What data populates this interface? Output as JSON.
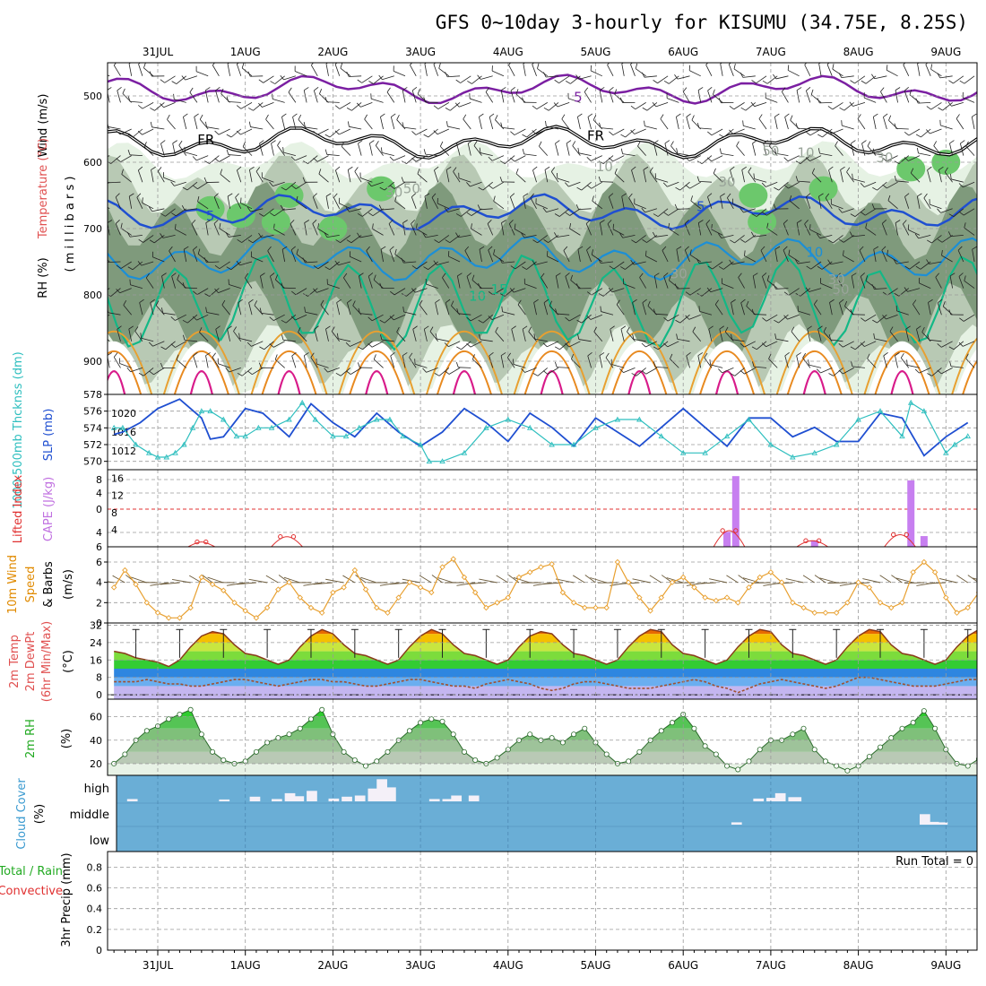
{
  "title": "GFS 0~10day 3-hourly for KISUMU (34.75E, 8.25S)",
  "dates": [
    "31JUL",
    "1AUG",
    "2AUG",
    "3AUG",
    "4AUG",
    "5AUG",
    "6AUG",
    "7AUG",
    "8AUG",
    "9AUG"
  ],
  "colors": {
    "grid": "#9a9a9a",
    "rh_light": "#e6f2e4",
    "rh_mid": "#b8c9b4",
    "rh_dark": "#7f9a7c",
    "rh_green": "#6cc86c",
    "cloud": "#6aaed6",
    "frz": "#000000"
  },
  "chart_data": [
    {
      "id": "upper-air",
      "type": "contour",
      "labels": {
        "wind": "Wind (m/s)",
        "temperature": "Temperature (°C)",
        "rh": "RH (%)",
        "pressure": "( m i l l i b a r s )"
      },
      "yticks": [
        500,
        600,
        700,
        800,
        900
      ],
      "ylim": [
        450,
        950
      ],
      "contour_labels": [
        {
          "text": "5",
          "value": 5,
          "t": 4.8,
          "p": 502,
          "color": "#7b1fa2"
        },
        {
          "text": "FR",
          "value": 0,
          "t": 0.55,
          "p": 566,
          "color": "#000000"
        },
        {
          "text": "FR",
          "value": 0,
          "t": 5.0,
          "p": 560,
          "color": "#000000"
        },
        {
          "text": "5",
          "value": 5,
          "t": 0.6,
          "p": 681,
          "color": "#1f4fd1"
        },
        {
          "text": "5",
          "value": 5,
          "t": 6.2,
          "p": 667,
          "color": "#1f4fd1"
        },
        {
          "text": "10",
          "value": 10,
          "t": 7.5,
          "p": 736,
          "color": "#1c8fd6"
        },
        {
          "text": "10",
          "value": 10,
          "t": 3.65,
          "p": 802,
          "color": "#13b886"
        },
        {
          "text": "15",
          "value": 15,
          "t": 3.9,
          "p": 792,
          "color": "#13b886"
        },
        {
          "text": "10",
          "value": 10,
          "t": 5.1,
          "p": 607,
          "color": "#9aa59a"
        },
        {
          "text": "30",
          "value": 30,
          "t": 2.7,
          "p": 645,
          "color": "#9aa59a"
        },
        {
          "text": "50",
          "value": 50,
          "t": 2.9,
          "p": 640,
          "color": "#9aa59a"
        },
        {
          "text": "30",
          "value": 30,
          "t": 6.5,
          "p": 630,
          "color": "#9aa59a"
        },
        {
          "text": "50",
          "value": 50,
          "t": 7.0,
          "p": 583,
          "color": "#9aa59a"
        },
        {
          "text": "10",
          "value": 10,
          "t": 7.4,
          "p": 586,
          "color": "#9aa59a"
        },
        {
          "text": "30",
          "value": 30,
          "t": 8.3,
          "p": 593,
          "color": "#9aa59a"
        },
        {
          "text": "30",
          "value": 30,
          "t": 5.95,
          "p": 768,
          "color": "#9aa59a"
        },
        {
          "text": "30",
          "value": 30,
          "t": 7.75,
          "p": 777,
          "color": "#9aa59a"
        },
        {
          "text": "50",
          "value": 50,
          "t": 7.8,
          "p": 792,
          "color": "#9aa59a"
        }
      ]
    },
    {
      "id": "slp-thickness",
      "type": "line",
      "labels": {
        "thickness": "1000-500mb Thcknss (dm)",
        "slp": "SLP (mb)"
      },
      "left_ticks": [
        570,
        572,
        574,
        576,
        578
      ],
      "left_lim": [
        569,
        578
      ],
      "right_ticks": [
        1012,
        1016,
        1020
      ],
      "right_lim": [
        1008,
        1024
      ],
      "series": [
        {
          "key": "slp",
          "color": "#1f4fd1",
          "t": [
            -0.5,
            -0.4,
            -0.2,
            0,
            0.25,
            0.5,
            0.6,
            0.75,
            1.0,
            1.2,
            1.5,
            1.75,
            2.0,
            2.25,
            2.5,
            2.75,
            3.0,
            3.25,
            3.5,
            3.75,
            4.0,
            4.25,
            4.5,
            4.75,
            5.0,
            5.25,
            5.5,
            5.75,
            6.0,
            6.25,
            6.5,
            6.75,
            7.0,
            7.25,
            7.5,
            7.75,
            8.0,
            8.25,
            8.5,
            8.75,
            9.0,
            9.25
          ],
          "values": [
            1015.5,
            1016,
            1018,
            1021,
            1023,
            1019,
            1014.5,
            1015,
            1021,
            1020,
            1015,
            1022,
            1018,
            1015,
            1020,
            1016,
            1013,
            1016,
            1021,
            1018,
            1014,
            1020,
            1017,
            1013,
            1019,
            1016,
            1013,
            1017,
            1021,
            1017,
            1013,
            1019,
            1019,
            1015,
            1017,
            1014,
            1014,
            1020,
            1019,
            1011,
            1015,
            1018
          ]
        },
        {
          "key": "thickness",
          "color": "#2fbfbf",
          "t": [
            -0.5,
            -0.4,
            -0.25,
            -0.1,
            0.0,
            0.1,
            0.2,
            0.3,
            0.4,
            0.5,
            0.6,
            0.75,
            0.9,
            1.0,
            1.15,
            1.3,
            1.5,
            1.65,
            1.8,
            2.0,
            2.15,
            2.3,
            2.5,
            2.65,
            2.8,
            3.0,
            3.1,
            3.25,
            3.5,
            3.75,
            4.0,
            4.25,
            4.5,
            4.75,
            5.0,
            5.25,
            5.5,
            5.75,
            6.0,
            6.25,
            6.5,
            6.75,
            7.0,
            7.25,
            7.5,
            7.75,
            8.0,
            8.25,
            8.5,
            8.6,
            8.75,
            9.0,
            9.1,
            9.25
          ],
          "values": [
            574,
            574,
            572,
            571,
            570.5,
            570.5,
            571,
            572,
            574,
            576,
            576,
            575,
            573,
            573,
            574,
            574,
            575,
            577,
            575,
            573,
            573,
            574,
            575,
            575,
            573,
            572,
            570,
            570,
            571,
            574,
            575,
            574,
            572,
            572,
            574,
            575,
            575,
            573,
            571,
            571,
            573,
            575,
            572,
            570.5,
            571,
            572,
            575,
            576,
            573,
            577,
            576,
            571,
            572,
            573
          ]
        }
      ]
    },
    {
      "id": "instability",
      "type": "bar",
      "labels": {
        "li": "Lifted Index",
        "cape": "CAPE (J/kg)"
      },
      "left_ticks": [
        -8,
        -4,
        0,
        4,
        6
      ],
      "left_tick_labels": [
        "8",
        "4",
        "0",
        "4",
        "6"
      ],
      "right_ticks": [
        4,
        8,
        12,
        16
      ],
      "right_lim": [
        0,
        18
      ],
      "cape_bars": [
        {
          "t": 6.5,
          "value": 3.5
        },
        {
          "t": 6.6,
          "value": 16.5
        },
        {
          "t": 7.5,
          "value": 1.5
        },
        {
          "t": 8.6,
          "value": 15.5
        },
        {
          "t": 8.75,
          "value": 2.5
        }
      ],
      "li_points": [
        {
          "t": 0.45,
          "value": 1.2
        },
        {
          "t": 0.55,
          "value": 1.2
        },
        {
          "t": 1.4,
          "value": 2.5
        },
        {
          "t": 1.55,
          "value": 2.5
        },
        {
          "t": 6.45,
          "value": 4
        },
        {
          "t": 6.6,
          "value": 4
        },
        {
          "t": 7.4,
          "value": 1.5
        },
        {
          "t": 7.55,
          "value": 1.5
        },
        {
          "t": 8.4,
          "value": 3
        },
        {
          "t": 8.55,
          "value": 3
        }
      ]
    },
    {
      "id": "wind10m",
      "type": "line",
      "labels": {
        "wind": "10m Wind",
        "speed": "Speed",
        "barbs": "& Barbs",
        "unit": "(m/s)"
      },
      "yticks": [
        0,
        2,
        4,
        6
      ],
      "ylim": [
        0,
        7.5
      ],
      "x_step": 0.125,
      "x_start": -0.5,
      "values": [
        3.5,
        5.2,
        3.8,
        2.0,
        1.0,
        0.5,
        0.5,
        1.5,
        4.5,
        3.8,
        3.2,
        2.0,
        1.2,
        0.5,
        1.5,
        3.3,
        4.0,
        2.5,
        1.5,
        1.0,
        3.0,
        3.5,
        5.2,
        3.3,
        1.5,
        1.0,
        2.5,
        4.0,
        3.5,
        3.0,
        5.5,
        6.3,
        4.5,
        3.0,
        1.5,
        2.0,
        2.5,
        4.5,
        5.0,
        5.5,
        5.8,
        3.0,
        2.0,
        1.5,
        1.5,
        1.5,
        6.0,
        4.0,
        2.5,
        1.2,
        2.5,
        4.0,
        4.5,
        3.5,
        2.5,
        2.2,
        2.5,
        2.0,
        3.5,
        4.5,
        5.0,
        4.0,
        2.0,
        1.5,
        1.0,
        1.0,
        1.0,
        2.0,
        4.0,
        3.5,
        2.0,
        1.5,
        2.0,
        5.0,
        6.0,
        5.0,
        2.5,
        1.0,
        1.5,
        3.0,
        2.5,
        4.0,
        4.5,
        2.0,
        1.5,
        2.0,
        3.0,
        3.5,
        2.5,
        3.5
      ]
    },
    {
      "id": "temp2m",
      "type": "area",
      "labels": {
        "t": "2m Temp",
        "d": "2m DewPt",
        "m": "(6hr Min/Max)",
        "unit": "(°C)"
      },
      "yticks": [
        0,
        8,
        16,
        24,
        32
      ],
      "ylim": [
        -2,
        33
      ],
      "x_step": 0.125,
      "x_start": -0.5,
      "temp": [
        20,
        19,
        17,
        16,
        15,
        13,
        16,
        22,
        27,
        29,
        28,
        23,
        19,
        18,
        16,
        14,
        16,
        22,
        27,
        30,
        28,
        23,
        19,
        18,
        16,
        14,
        16,
        22,
        27,
        30,
        28,
        23,
        19,
        18,
        16,
        14,
        16,
        22,
        27,
        29,
        28,
        23,
        19,
        18,
        16,
        14,
        16,
        22,
        27,
        30,
        29,
        23,
        19,
        18,
        16,
        14,
        16,
        22,
        27,
        30,
        29,
        23,
        19,
        18,
        16,
        14,
        16,
        22,
        27,
        30,
        29,
        23,
        19,
        18,
        16,
        14,
        16,
        22,
        27,
        30,
        29,
        23,
        19,
        18,
        16,
        14,
        16,
        22,
        27,
        30,
        29,
        23,
        19,
        18,
        17,
        16,
        15,
        22
      ],
      "dewpoint": [
        6,
        6,
        6,
        7,
        6,
        5,
        5,
        4,
        4,
        5,
        6,
        7,
        7,
        6,
        5,
        4,
        5,
        6,
        7,
        7,
        6,
        6,
        5,
        4,
        4,
        5,
        6,
        7,
        7,
        6,
        5,
        4,
        4,
        3,
        5,
        6,
        7,
        6,
        5,
        3,
        2,
        3,
        5,
        6,
        6,
        5,
        4,
        3,
        3,
        3,
        4,
        5,
        6,
        7,
        6,
        4,
        3,
        1,
        3,
        5,
        6,
        7,
        6,
        5,
        4,
        3,
        4,
        6,
        8,
        8,
        7,
        6,
        5,
        4,
        4,
        4,
        5,
        6,
        7,
        7,
        6,
        5,
        4,
        4,
        5,
        6,
        7,
        6,
        6,
        5,
        5,
        6,
        7,
        8
      ],
      "bands": [
        {
          "from": -2,
          "to": 4,
          "color": "#c4b6f0"
        },
        {
          "from": 4,
          "to": 8,
          "color": "#6aaef0"
        },
        {
          "from": 8,
          "to": 12,
          "color": "#2e86e0"
        },
        {
          "from": 12,
          "to": 16,
          "color": "#33cc33"
        },
        {
          "from": 16,
          "to": 20,
          "color": "#7cdc3c"
        },
        {
          "from": 20,
          "to": 24,
          "color": "#c8e640"
        },
        {
          "from": 24,
          "to": 28,
          "color": "#f5c000"
        },
        {
          "from": 28,
          "to": 33,
          "color": "#e86a00"
        }
      ]
    },
    {
      "id": "rh2m",
      "type": "area",
      "labels": {
        "rh": "2m RH",
        "unit": "(%)"
      },
      "yticks": [
        20,
        40,
        60
      ],
      "ylim": [
        10,
        75
      ],
      "x_step": 0.125,
      "x_start": -0.5,
      "values": [
        20,
        28,
        40,
        48,
        52,
        58,
        62,
        66,
        45,
        30,
        23,
        20,
        22,
        30,
        38,
        42,
        45,
        50,
        58,
        66,
        45,
        30,
        23,
        18,
        22,
        30,
        40,
        48,
        55,
        58,
        56,
        45,
        30,
        23,
        20,
        25,
        32,
        40,
        45,
        40,
        42,
        38,
        45,
        50,
        38,
        28,
        20,
        22,
        30,
        40,
        48,
        55,
        62,
        50,
        35,
        28,
        18,
        15,
        22,
        32,
        40,
        40,
        45,
        50,
        32,
        22,
        18,
        14,
        18,
        26,
        34,
        42,
        50,
        55,
        65,
        50,
        32,
        20,
        18,
        24,
        30,
        40,
        45,
        65,
        70,
        50,
        30,
        20,
        18,
        24,
        32,
        42,
        48,
        55,
        65,
        50,
        35,
        28,
        24,
        30,
        42,
        50,
        55,
        60,
        66,
        45
      ]
    },
    {
      "id": "cloud",
      "type": "heatmap",
      "labels": {
        "cloud": "Cloud Cover",
        "unit": "(%)",
        "high": "high",
        "middle": "middle",
        "low": "low"
      },
      "high_cells": [
        {
          "t": -0.35,
          "w": 0.12,
          "h": 0.1
        },
        {
          "t": 0.7,
          "w": 0.12,
          "h": 0.08
        },
        {
          "t": 1.05,
          "w": 0.12,
          "h": 0.2
        },
        {
          "t": 1.3,
          "w": 0.12,
          "h": 0.1
        },
        {
          "t": 1.45,
          "w": 0.12,
          "h": 0.35
        },
        {
          "t": 1.55,
          "w": 0.12,
          "h": 0.22
        },
        {
          "t": 1.7,
          "w": 0.12,
          "h": 0.45
        },
        {
          "t": 1.95,
          "w": 0.12,
          "h": 0.12
        },
        {
          "t": 2.1,
          "w": 0.12,
          "h": 0.2
        },
        {
          "t": 2.25,
          "w": 0.12,
          "h": 0.25
        },
        {
          "t": 2.4,
          "w": 0.12,
          "h": 0.55
        },
        {
          "t": 2.5,
          "w": 0.12,
          "h": 0.95
        },
        {
          "t": 2.6,
          "w": 0.12,
          "h": 0.6
        },
        {
          "t": 3.1,
          "w": 0.12,
          "h": 0.1
        },
        {
          "t": 3.25,
          "w": 0.12,
          "h": 0.1
        },
        {
          "t": 3.35,
          "w": 0.12,
          "h": 0.25
        },
        {
          "t": 3.55,
          "w": 0.12,
          "h": 0.25
        },
        {
          "t": 6.8,
          "w": 0.12,
          "h": 0.12
        },
        {
          "t": 6.95,
          "w": 0.12,
          "h": 0.15
        },
        {
          "t": 7.05,
          "w": 0.12,
          "h": 0.35
        },
        {
          "t": 7.2,
          "w": 0.15,
          "h": 0.18
        }
      ],
      "mid_cells": [
        {
          "t": 6.55,
          "w": 0.12,
          "h": 0.1
        },
        {
          "t": 8.7,
          "w": 0.12,
          "h": 0.45
        },
        {
          "t": 8.8,
          "w": 0.12,
          "h": 0.12
        },
        {
          "t": 8.9,
          "w": 0.12,
          "h": 0.1
        }
      ]
    },
    {
      "id": "precip",
      "type": "bar",
      "labels": {
        "precip": "3hr Precip (mm)",
        "total": "Total / Rain",
        "convective": "Convective",
        "run_total": "Run Total = 0"
      },
      "yticks": [
        0,
        0.2,
        0.4,
        0.6,
        0.8
      ],
      "ylim": [
        0,
        0.95
      ],
      "values": []
    }
  ]
}
